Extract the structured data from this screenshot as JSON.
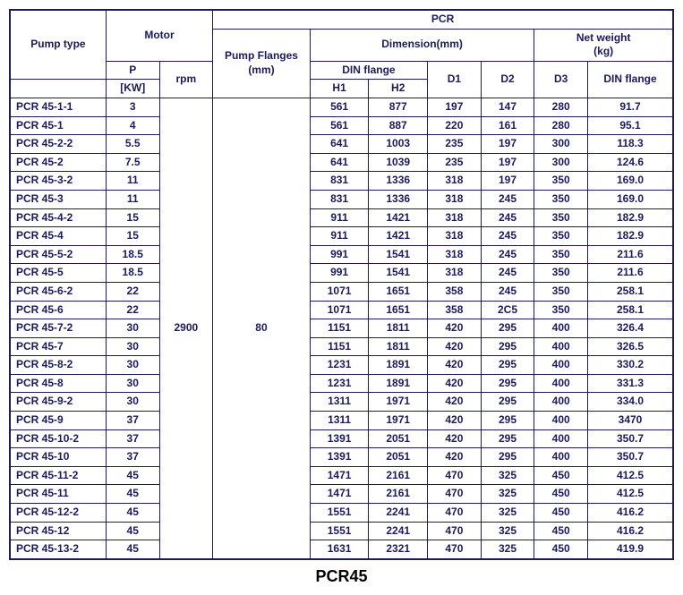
{
  "headers": {
    "pump_type": "Pump type",
    "motor": "Motor",
    "pcr": "PCR",
    "pump_flanges": "Pump Flanges",
    "pump_flanges_unit": "(mm)",
    "dimension": "Dimension(mm)",
    "net_weight": "Net weight",
    "net_weight_unit": "(kg)",
    "p": "P",
    "kw": "[KW]",
    "rpm": "rpm",
    "din_flange_h": "DIN flange",
    "h1": "H1",
    "h2": "H2",
    "d1": "D1",
    "d2": "D2",
    "d3": "D3",
    "din_flange": "DIN flange"
  },
  "shared": {
    "rpm": "2900",
    "flanges": "80"
  },
  "rows": [
    {
      "pt": "PCR 45-1-1",
      "p": "3",
      "h1": "561",
      "h2": "877",
      "d1": "197",
      "d2": "147",
      "d3": "280",
      "nw": "91.7"
    },
    {
      "pt": "PCR 45-1",
      "p": "4",
      "h1": "561",
      "h2": "887",
      "d1": "220",
      "d2": "161",
      "d3": "280",
      "nw": "95.1"
    },
    {
      "pt": "PCR 45-2-2",
      "p": "5.5",
      "h1": "641",
      "h2": "1003",
      "d1": "235",
      "d2": "197",
      "d3": "300",
      "nw": "118.3"
    },
    {
      "pt": "PCR 45-2",
      "p": "7.5",
      "h1": "641",
      "h2": "1039",
      "d1": "235",
      "d2": "197",
      "d3": "300",
      "nw": "124.6"
    },
    {
      "pt": "PCR 45-3-2",
      "p": "11",
      "h1": "831",
      "h2": "1336",
      "d1": "318",
      "d2": "197",
      "d3": "350",
      "nw": "169.0"
    },
    {
      "pt": "PCR 45-3",
      "p": "11",
      "h1": "831",
      "h2": "1336",
      "d1": "318",
      "d2": "245",
      "d3": "350",
      "nw": "169.0"
    },
    {
      "pt": "PCR 45-4-2",
      "p": "15",
      "h1": "911",
      "h2": "1421",
      "d1": "318",
      "d2": "245",
      "d3": "350",
      "nw": "182.9"
    },
    {
      "pt": "PCR 45-4",
      "p": "15",
      "h1": "911",
      "h2": "1421",
      "d1": "318",
      "d2": "245",
      "d3": "350",
      "nw": "182.9"
    },
    {
      "pt": "PCR 45-5-2",
      "p": "18.5",
      "h1": "991",
      "h2": "1541",
      "d1": "318",
      "d2": "245",
      "d3": "350",
      "nw": "211.6"
    },
    {
      "pt": "PCR 45-5",
      "p": "18.5",
      "h1": "991",
      "h2": "1541",
      "d1": "318",
      "d2": "245",
      "d3": "350",
      "nw": "211.6"
    },
    {
      "pt": "PCR 45-6-2",
      "p": "22",
      "h1": "1071",
      "h2": "1651",
      "d1": "358",
      "d2": "245",
      "d3": "350",
      "nw": "258.1"
    },
    {
      "pt": "PCR 45-6",
      "p": "22",
      "h1": "1071",
      "h2": "1651",
      "d1": "358",
      "d2": "2C5",
      "d3": "350",
      "nw": "258.1"
    },
    {
      "pt": "PCR 45-7-2",
      "p": "30",
      "h1": "1151",
      "h2": "1811",
      "d1": "420",
      "d2": "295",
      "d3": "400",
      "nw": "326.4"
    },
    {
      "pt": "PCR 45-7",
      "p": "30",
      "h1": "1151",
      "h2": "1811",
      "d1": "420",
      "d2": "295",
      "d3": "400",
      "nw": "326.5"
    },
    {
      "pt": "PCR 45-8-2",
      "p": "30",
      "h1": "1231",
      "h2": "1891",
      "d1": "420",
      "d2": "295",
      "d3": "400",
      "nw": "330.2"
    },
    {
      "pt": "PCR 45-8",
      "p": "30",
      "h1": "1231",
      "h2": "1891",
      "d1": "420",
      "d2": "295",
      "d3": "400",
      "nw": "331.3"
    },
    {
      "pt": "PCR 45-9-2",
      "p": "30",
      "h1": "1311",
      "h2": "1971",
      "d1": "420",
      "d2": "295",
      "d3": "400",
      "nw": "334.0"
    },
    {
      "pt": "PCR 45-9",
      "p": "37",
      "h1": "1311",
      "h2": "1971",
      "d1": "420",
      "d2": "295",
      "d3": "400",
      "nw": "3470"
    },
    {
      "pt": "PCR 45-10-2",
      "p": "37",
      "h1": "1391",
      "h2": "2051",
      "d1": "420",
      "d2": "295",
      "d3": "400",
      "nw": "350.7"
    },
    {
      "pt": "PCR 45-10",
      "p": "37",
      "h1": "1391",
      "h2": "2051",
      "d1": "420",
      "d2": "295",
      "d3": "400",
      "nw": "350.7"
    },
    {
      "pt": "PCR 45-11-2",
      "p": "45",
      "h1": "1471",
      "h2": "2161",
      "d1": "470",
      "d2": "325",
      "d3": "450",
      "nw": "412.5"
    },
    {
      "pt": "PCR 45-11",
      "p": "45",
      "h1": "1471",
      "h2": "2161",
      "d1": "470",
      "d2": "325",
      "d3": "450",
      "nw": "412.5"
    },
    {
      "pt": "PCR 45-12-2",
      "p": "45",
      "h1": "1551",
      "h2": "2241",
      "d1": "470",
      "d2": "325",
      "d3": "450",
      "nw": "416.2"
    },
    {
      "pt": "PCR 45-12",
      "p": "45",
      "h1": "1551",
      "h2": "2241",
      "d1": "470",
      "d2": "325",
      "d3": "450",
      "nw": "416.2"
    },
    {
      "pt": "PCR 45-13-2",
      "p": "45",
      "h1": "1631",
      "h2": "2321",
      "d1": "470",
      "d2": "325",
      "d3": "450",
      "nw": "419.9"
    }
  ],
  "caption": "PCR45",
  "colors": {
    "border": "#1a1a5c",
    "text": "#1a1a5c",
    "bg": "#ffffff"
  }
}
